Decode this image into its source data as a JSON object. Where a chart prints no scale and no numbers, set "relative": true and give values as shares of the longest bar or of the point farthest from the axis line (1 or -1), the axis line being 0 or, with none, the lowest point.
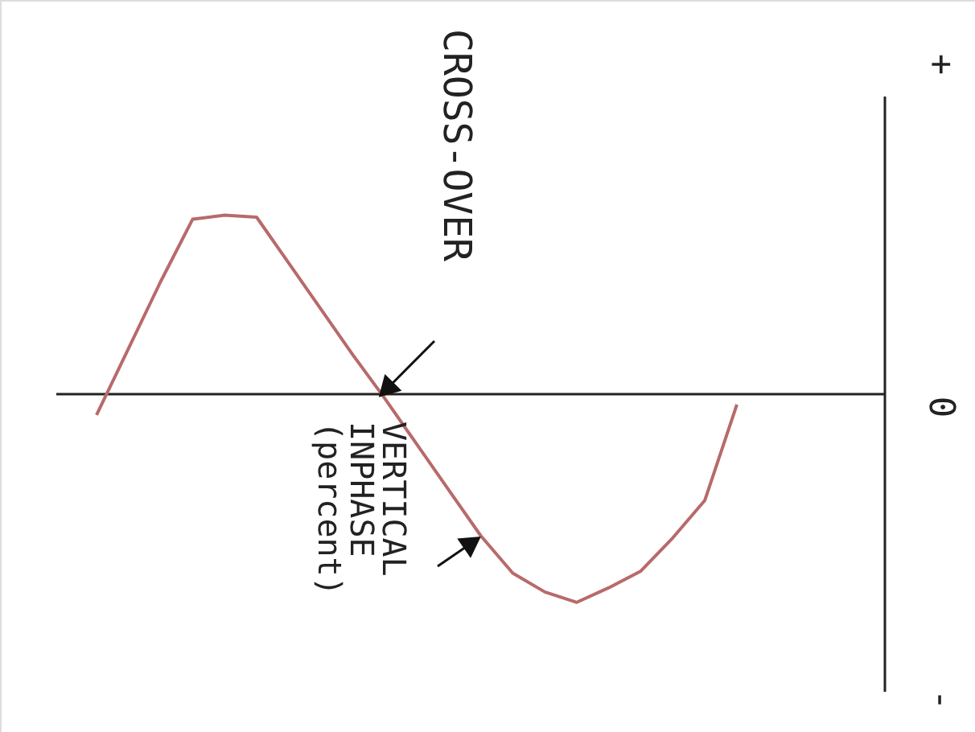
{
  "chart_data": {
    "type": "line",
    "relative": true,
    "categories": [
      null,
      null,
      null,
      null,
      null,
      null,
      null,
      null,
      null,
      null,
      null,
      null,
      null,
      null,
      null,
      null,
      null,
      null,
      null,
      null,
      null
    ],
    "values": [
      -0.1,
      0.22,
      0.54,
      0.84,
      0.86,
      0.85,
      0.63,
      0.41,
      0.19,
      -0.02,
      -0.24,
      -0.46,
      -0.68,
      -0.86,
      -0.95,
      -1,
      -0.93,
      -0.85,
      -0.69,
      -0.51,
      -0.05
    ],
    "color": "#b86a6a",
    "annotations": [
      "CROSS-OVER",
      "VERTICAL INPHASE (percent)",
      "+",
      "0",
      "-"
    ]
  }
}
